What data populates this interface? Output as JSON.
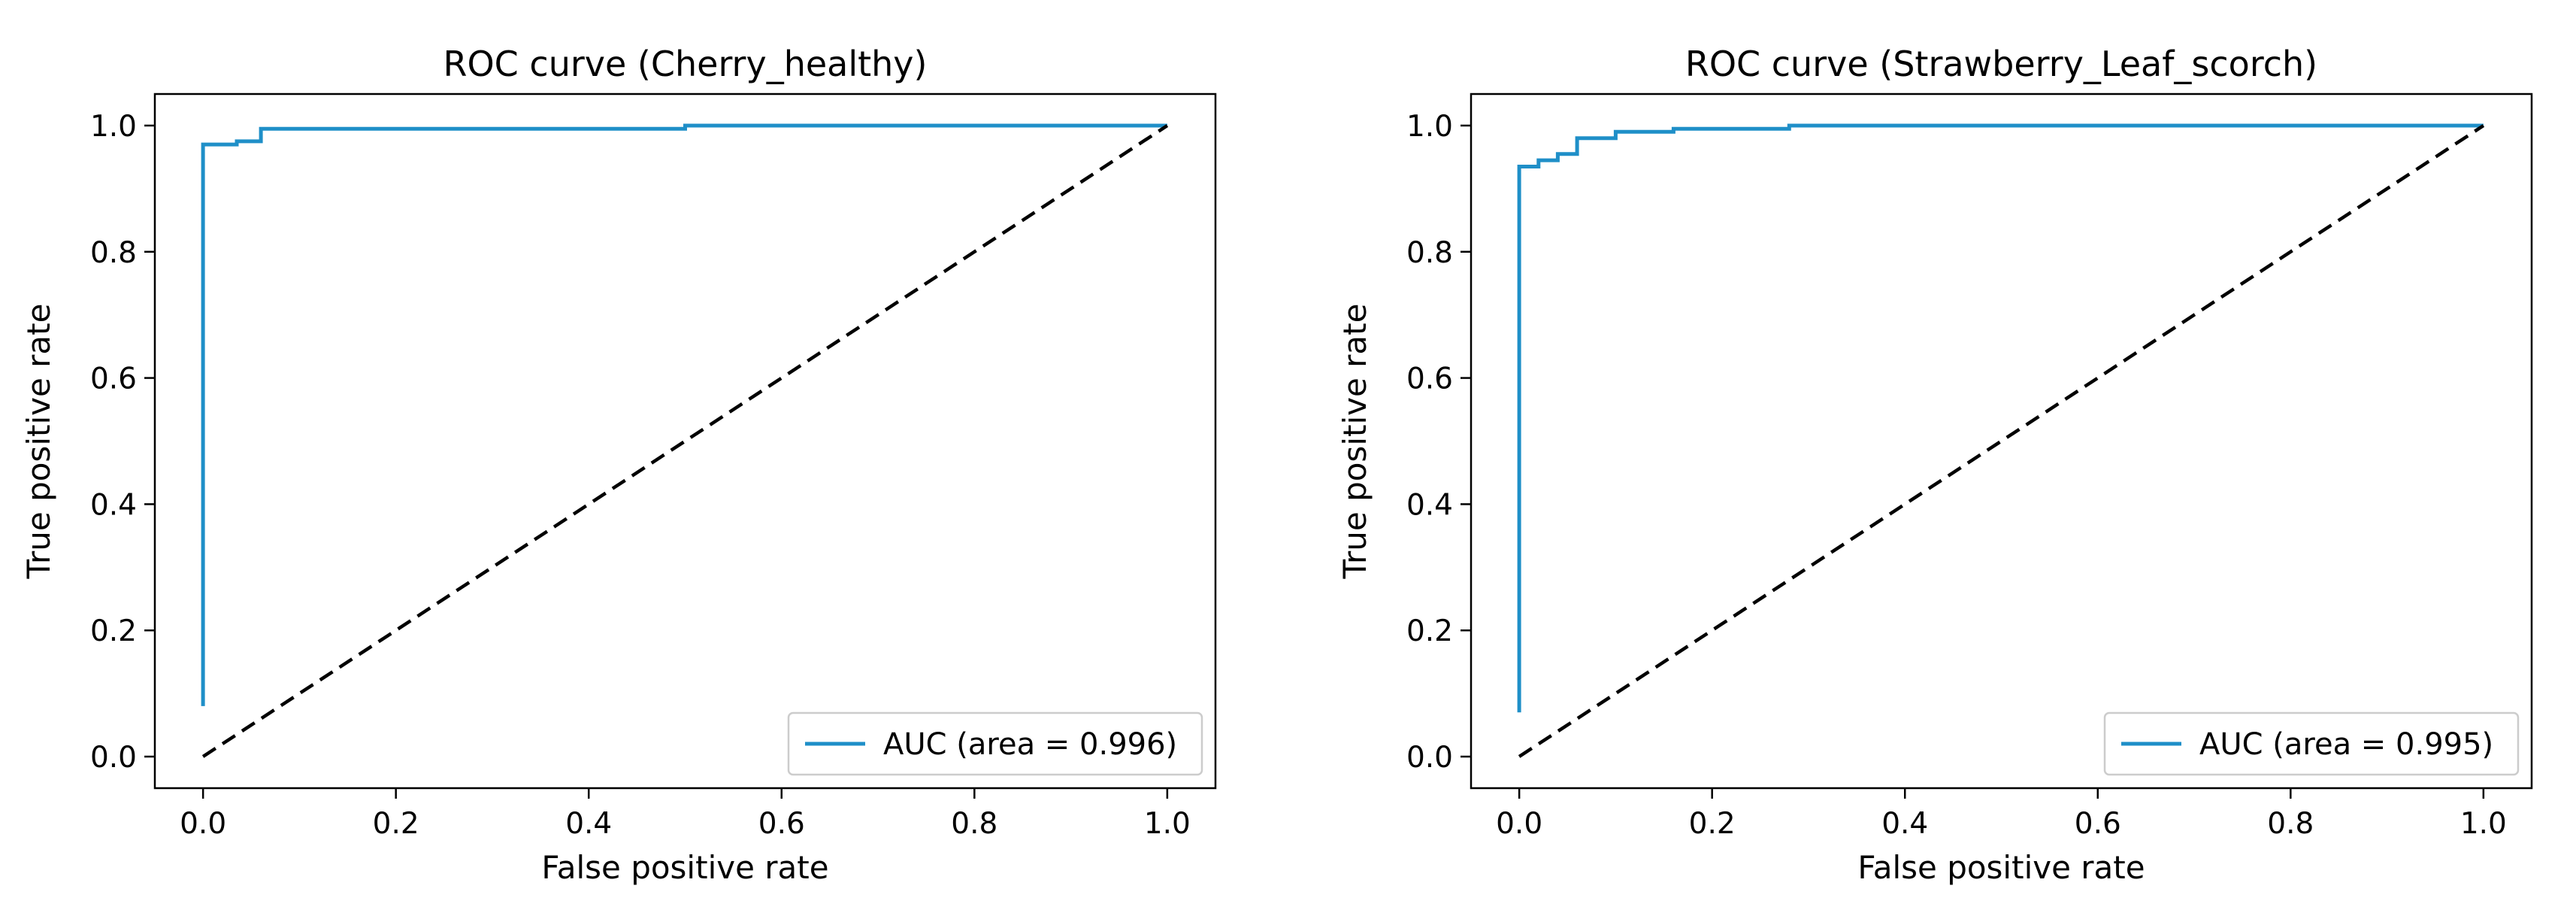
{
  "chart_data": [
    {
      "type": "line",
      "title": "ROC curve (Cherry_healthy)",
      "xlabel": "False positive rate",
      "ylabel": "True positive rate",
      "xlim": [
        -0.05,
        1.05
      ],
      "ylim": [
        -0.05,
        1.05
      ],
      "xticks": [
        "0.0",
        "0.2",
        "0.4",
        "0.6",
        "0.8",
        "1.0"
      ],
      "yticks": [
        "0.0",
        "0.2",
        "0.4",
        "0.6",
        "0.8",
        "1.0"
      ],
      "legend_position": "lower-right",
      "series": [
        {
          "name": "AUC (area = 0.996)",
          "color": "#1f8fc8",
          "style": "solid",
          "x": [
            0,
            0,
            0.035,
            0.035,
            0.06,
            0.06,
            0.5,
            0.5,
            1.0
          ],
          "y": [
            0.08,
            0.97,
            0.97,
            0.975,
            0.975,
            0.995,
            0.995,
            1.0,
            1.0
          ]
        },
        {
          "name": "chance",
          "color": "#000000",
          "style": "dashed",
          "x": [
            0,
            1
          ],
          "y": [
            0,
            1
          ]
        }
      ]
    },
    {
      "type": "line",
      "title": "ROC curve (Strawberry_Leaf_scorch)",
      "xlabel": "False positive rate",
      "ylabel": "True positive rate",
      "xlim": [
        -0.05,
        1.05
      ],
      "ylim": [
        -0.05,
        1.05
      ],
      "xticks": [
        "0.0",
        "0.2",
        "0.4",
        "0.6",
        "0.8",
        "1.0"
      ],
      "yticks": [
        "0.0",
        "0.2",
        "0.4",
        "0.6",
        "0.8",
        "1.0"
      ],
      "legend_position": "lower-right",
      "series": [
        {
          "name": "AUC (area = 0.995)",
          "color": "#1f8fc8",
          "style": "solid",
          "x": [
            0,
            0,
            0.02,
            0.02,
            0.04,
            0.04,
            0.06,
            0.06,
            0.1,
            0.1,
            0.16,
            0.16,
            0.28,
            0.28,
            1.0
          ],
          "y": [
            0.07,
            0.935,
            0.935,
            0.945,
            0.945,
            0.955,
            0.955,
            0.98,
            0.98,
            0.99,
            0.99,
            0.995,
            0.995,
            1.0,
            1.0
          ]
        },
        {
          "name": "chance",
          "color": "#000000",
          "style": "dashed",
          "x": [
            0,
            1
          ],
          "y": [
            0,
            1
          ]
        }
      ]
    }
  ]
}
